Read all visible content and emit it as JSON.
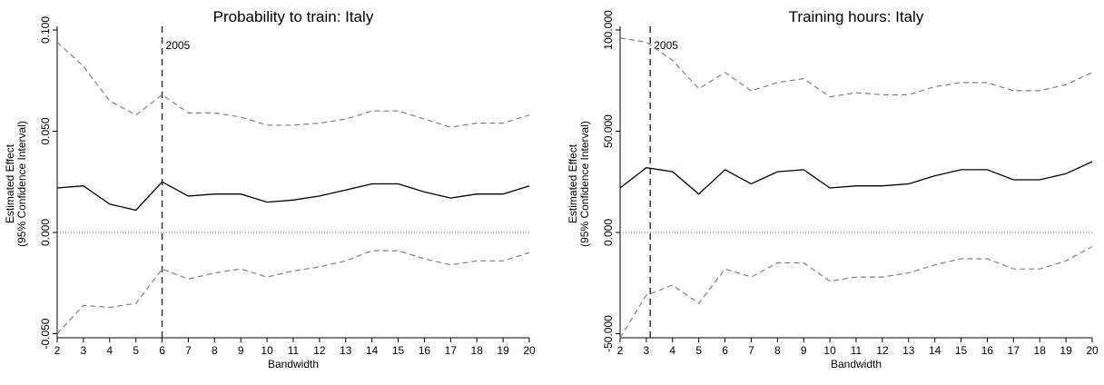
{
  "chart_data": [
    {
      "type": "line",
      "title": "Probability to train: Italy",
      "xlabel": "Bandwidth",
      "ylabel_lines": [
        "Estimated Effect",
        "(95% Confidence Interval)"
      ],
      "x": [
        2,
        3,
        4,
        5,
        6,
        7,
        8,
        9,
        10,
        11,
        12,
        13,
        14,
        15,
        16,
        17,
        18,
        19,
        20
      ],
      "x_ticks": [
        "2",
        "3",
        "4",
        "5",
        "6",
        "7",
        "8",
        "9",
        "10",
        "11",
        "12",
        "13",
        "14",
        "15",
        "16",
        "17",
        "18",
        "19",
        "20"
      ],
      "y_ticks": [
        {
          "value": -0.05,
          "label": "-0.050"
        },
        {
          "value": 0.0,
          "label": "0.000"
        },
        {
          "value": 0.05,
          "label": "0.050"
        },
        {
          "value": 0.1,
          "label": "0.100"
        }
      ],
      "xlim": [
        2,
        20
      ],
      "ylim": [
        -0.052,
        0.1
      ],
      "reference_line": {
        "x": 6,
        "label": "2005"
      },
      "zero_line": 0,
      "series": [
        {
          "role": "upper_ci",
          "style": "dashed",
          "color": "#7f7f7f",
          "values": [
            0.094,
            0.082,
            0.065,
            0.058,
            0.068,
            0.059,
            0.059,
            0.057,
            0.053,
            0.053,
            0.054,
            0.056,
            0.06,
            0.06,
            0.056,
            0.052,
            0.054,
            0.054,
            0.058
          ]
        },
        {
          "role": "estimate",
          "style": "solid",
          "color": "#000000",
          "values": [
            0.022,
            0.023,
            0.014,
            0.011,
            0.025,
            0.018,
            0.019,
            0.019,
            0.015,
            0.016,
            0.018,
            0.021,
            0.024,
            0.024,
            0.02,
            0.017,
            0.019,
            0.019,
            0.023
          ]
        },
        {
          "role": "lower_ci",
          "style": "dashed",
          "color": "#7f7f7f",
          "values": [
            -0.05,
            -0.036,
            -0.037,
            -0.035,
            -0.018,
            -0.023,
            -0.02,
            -0.018,
            -0.022,
            -0.019,
            -0.017,
            -0.014,
            -0.009,
            -0.009,
            -0.013,
            -0.016,
            -0.014,
            -0.014,
            -0.01
          ]
        }
      ]
    },
    {
      "type": "line",
      "title": "Training hours: Italy",
      "xlabel": "Bandwidth",
      "ylabel_lines": [
        "Estimated Effect",
        "(95% Confidence Interval)"
      ],
      "x": [
        2,
        3,
        4,
        5,
        6,
        7,
        8,
        9,
        10,
        11,
        12,
        13,
        14,
        15,
        16,
        17,
        18,
        19,
        20
      ],
      "x_ticks": [
        "2",
        "3",
        "4",
        "5",
        "6",
        "7",
        "8",
        "9",
        "10",
        "11",
        "12",
        "13",
        "14",
        "15",
        "16",
        "17",
        "18",
        "19",
        "20"
      ],
      "y_ticks": [
        {
          "value": -50,
          "label": "-50.000"
        },
        {
          "value": 0,
          "label": "0.000"
        },
        {
          "value": 50,
          "label": "50.000"
        },
        {
          "value": 100,
          "label": "100.000"
        }
      ],
      "xlim": [
        2,
        20
      ],
      "ylim": [
        -52,
        100
      ],
      "reference_line": {
        "x": 3.15,
        "label": "2005"
      },
      "zero_line": 0,
      "series": [
        {
          "role": "upper_ci",
          "style": "dashed",
          "color": "#7f7f7f",
          "values": [
            96,
            94,
            85,
            71,
            79,
            70,
            74,
            76,
            67,
            69,
            68,
            68,
            72,
            74,
            74,
            70,
            70,
            73,
            79
          ]
        },
        {
          "role": "estimate",
          "style": "solid",
          "color": "#000000",
          "values": [
            22,
            32,
            30,
            19,
            31,
            24,
            30,
            31,
            22,
            23,
            23,
            24,
            28,
            31,
            31,
            26,
            26,
            29,
            35
          ]
        },
        {
          "role": "lower_ci",
          "style": "dashed",
          "color": "#7f7f7f",
          "values": [
            -52,
            -31,
            -26,
            -35,
            -18,
            -22,
            -15,
            -15,
            -24,
            -22,
            -22,
            -20,
            -16,
            -13,
            -13,
            -18,
            -18,
            -14,
            -7
          ]
        }
      ]
    }
  ]
}
